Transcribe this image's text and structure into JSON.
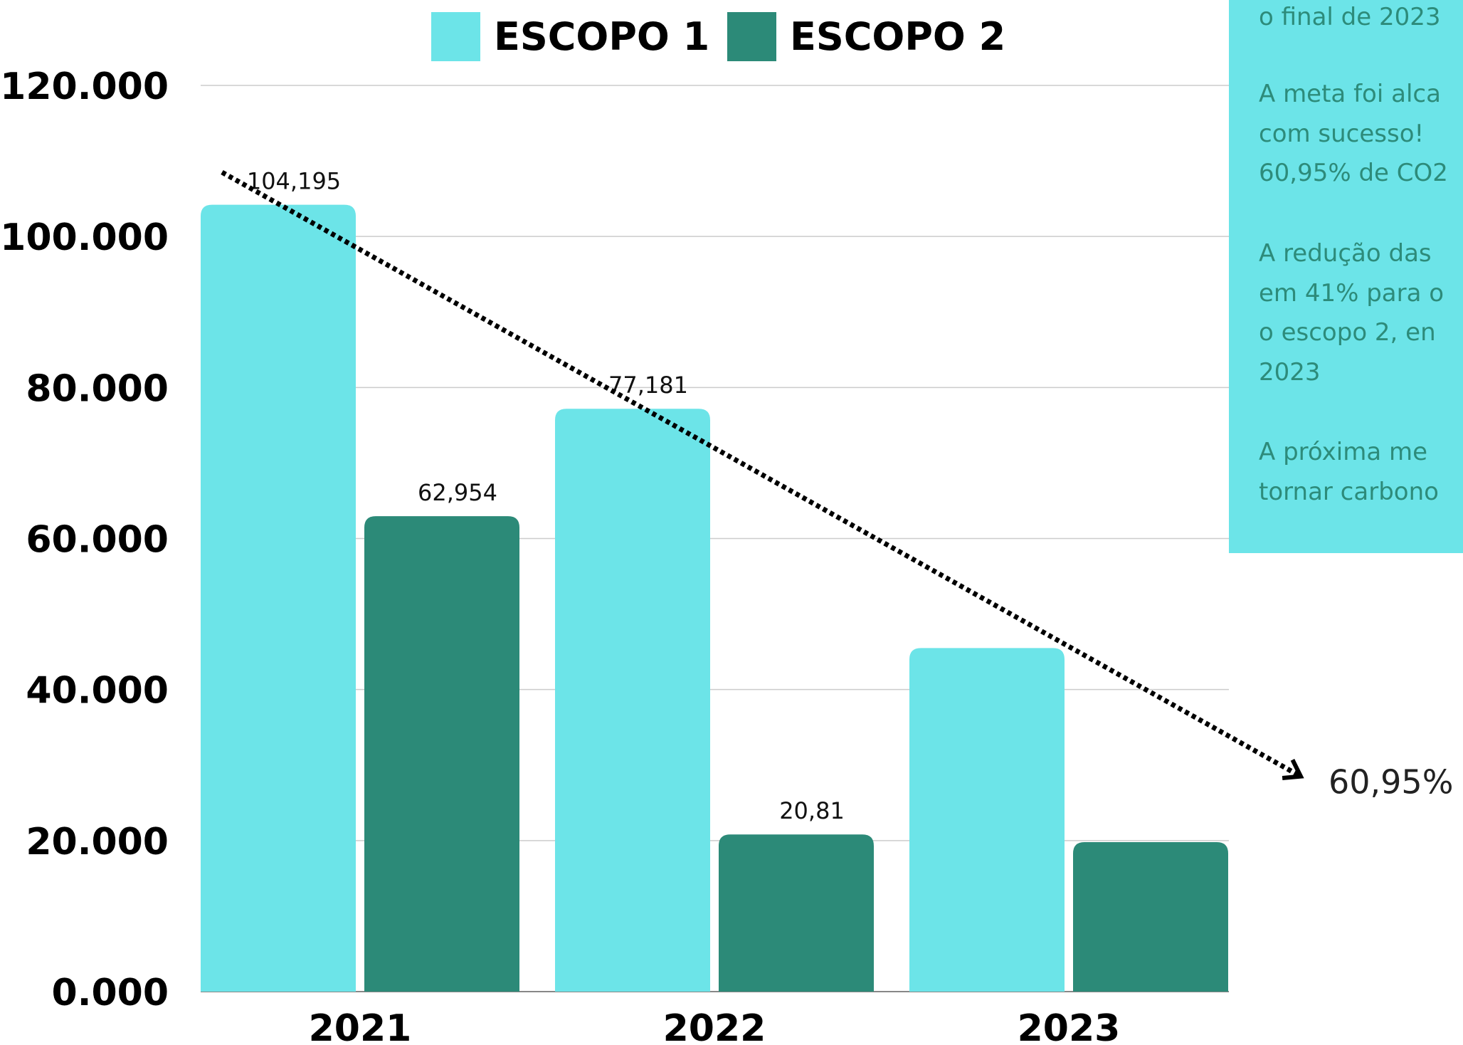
{
  "colors": {
    "escopo1": "#6ce4e8",
    "escopo2": "#2c8a78",
    "grid": "#cccccc",
    "panel_bg": "#6ce4e8",
    "panel_text": "#2d8b7a"
  },
  "chart_data": {
    "type": "bar",
    "categories": [
      "2021",
      "2022",
      "2023"
    ],
    "series": [
      {
        "name": "ESCOPO 1",
        "values": [
          104.195,
          77.181,
          45.5
        ]
      },
      {
        "name": "ESCOPO 2",
        "values": [
          62.954,
          20.81,
          19.8
        ]
      }
    ],
    "data_labels": {
      "ESCOPO 1": [
        "104,195",
        "77,181",
        ""
      ],
      "ESCOPO 2": [
        "62,954",
        "20,81",
        ""
      ]
    },
    "y_ticks": [
      {
        "value": 0,
        "label": "0.000"
      },
      {
        "value": 20,
        "label": "20.000"
      },
      {
        "value": 40,
        "label": "40.000"
      },
      {
        "value": 60,
        "label": "60.000"
      },
      {
        "value": 80,
        "label": "80.000"
      },
      {
        "value": 100,
        "label": "100.000"
      },
      {
        "value": 120,
        "label": "120.000"
      }
    ],
    "ylim": [
      0,
      120
    ],
    "grid": true,
    "legend_position": "top",
    "trend": {
      "from": [
        "2021",
        108.5
      ],
      "to": [
        "2023",
        28.5
      ],
      "style": "dotted-arrow",
      "label": "60,95%"
    }
  },
  "side_panel": {
    "lines": [
      "o final de 2023",
      "A meta foi alca",
      "com sucesso!",
      "60,95% de CO2",
      "A redução das",
      "em 41% para o",
      "o escopo 2, en",
      "2023",
      " A próxima me",
      "tornar carbono"
    ]
  }
}
